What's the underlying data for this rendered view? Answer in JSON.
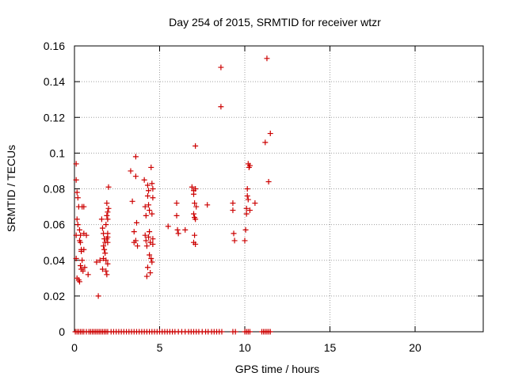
{
  "chart_data": {
    "type": "scatter",
    "title": "Day 254 of 2015, SRMTID for receiver wtzr",
    "xlabel": "GPS time / hours",
    "ylabel": "SRMTID / TECUs",
    "xlim": [
      0,
      24
    ],
    "ylim": [
      0,
      0.16
    ],
    "xticks": [
      0,
      5,
      10,
      15,
      20
    ],
    "xtick_labels": [
      "0",
      "5",
      "10",
      "15",
      "20"
    ],
    "yticks": [
      0,
      0.02,
      0.04,
      0.06,
      0.08,
      0.1,
      0.12,
      0.14,
      0.16
    ],
    "ytick_labels": [
      "0",
      "0.02",
      "0.04",
      "0.06",
      "0.08",
      "0.1",
      "0.12",
      "0.14",
      "0.16"
    ],
    "grid": true,
    "marker": "+",
    "marker_color": "#cc0000",
    "points": [
      [
        0.1,
        0.094
      ],
      [
        0.1,
        0.085
      ],
      [
        0.15,
        0.078
      ],
      [
        0.2,
        0.075
      ],
      [
        0.25,
        0.07
      ],
      [
        0.15,
        0.063
      ],
      [
        0.2,
        0.06
      ],
      [
        0.1,
        0.054
      ],
      [
        0.1,
        0.041
      ],
      [
        0.15,
        0.03
      ],
      [
        0.25,
        0.029
      ],
      [
        0.3,
        0.028
      ],
      [
        0.3,
        0.057
      ],
      [
        0.35,
        0.054
      ],
      [
        0.3,
        0.051
      ],
      [
        0.35,
        0.05
      ],
      [
        0.4,
        0.046
      ],
      [
        0.4,
        0.045
      ],
      [
        0.45,
        0.04
      ],
      [
        0.35,
        0.037
      ],
      [
        0.4,
        0.035
      ],
      [
        0.5,
        0.034
      ],
      [
        0.45,
        0.07
      ],
      [
        0.55,
        0.07
      ],
      [
        0.55,
        0.055
      ],
      [
        0.6,
        0.036
      ],
      [
        0.7,
        0.054
      ],
      [
        0.8,
        0.032
      ],
      [
        0.55,
        0.046
      ],
      [
        1.3,
        0.039
      ],
      [
        1.4,
        0.02
      ],
      [
        1.5,
        0.04
      ],
      [
        1.6,
        0.063
      ],
      [
        1.65,
        0.058
      ],
      [
        1.7,
        0.055
      ],
      [
        1.75,
        0.052
      ],
      [
        1.8,
        0.05
      ],
      [
        1.7,
        0.048
      ],
      [
        1.75,
        0.046
      ],
      [
        1.8,
        0.044
      ],
      [
        1.7,
        0.041
      ],
      [
        1.65,
        0.035
      ],
      [
        1.85,
        0.034
      ],
      [
        1.9,
        0.072
      ],
      [
        1.95,
        0.067
      ],
      [
        1.9,
        0.065
      ],
      [
        1.95,
        0.063
      ],
      [
        1.85,
        0.06
      ],
      [
        1.95,
        0.055
      ],
      [
        1.9,
        0.052
      ],
      [
        1.95,
        0.05
      ],
      [
        1.85,
        0.04
      ],
      [
        1.95,
        0.038
      ],
      [
        1.9,
        0.032
      ],
      [
        2.0,
        0.081
      ],
      [
        2.0,
        0.069
      ],
      [
        1.95,
        0.053
      ],
      [
        3.3,
        0.09
      ],
      [
        3.4,
        0.073
      ],
      [
        3.5,
        0.056
      ],
      [
        3.5,
        0.05
      ],
      [
        3.6,
        0.098
      ],
      [
        3.6,
        0.087
      ],
      [
        3.65,
        0.061
      ],
      [
        3.6,
        0.051
      ],
      [
        3.7,
        0.048
      ],
      [
        4.1,
        0.085
      ],
      [
        4.15,
        0.07
      ],
      [
        4.2,
        0.065
      ],
      [
        4.15,
        0.054
      ],
      [
        4.2,
        0.051
      ],
      [
        4.25,
        0.048
      ],
      [
        4.3,
        0.036
      ],
      [
        4.25,
        0.031
      ],
      [
        4.3,
        0.082
      ],
      [
        4.35,
        0.079
      ],
      [
        4.3,
        0.076
      ],
      [
        4.35,
        0.071
      ],
      [
        4.4,
        0.068
      ],
      [
        4.4,
        0.056
      ],
      [
        4.35,
        0.053
      ],
      [
        4.45,
        0.05
      ],
      [
        4.4,
        0.043
      ],
      [
        4.5,
        0.041
      ],
      [
        4.55,
        0.039
      ],
      [
        4.45,
        0.033
      ],
      [
        4.5,
        0.092
      ],
      [
        4.55,
        0.083
      ],
      [
        4.6,
        0.075
      ],
      [
        4.55,
        0.066
      ],
      [
        4.6,
        0.052
      ],
      [
        4.6,
        0.049
      ],
      [
        4.6,
        0.08
      ],
      [
        5.5,
        0.059
      ],
      [
        6.0,
        0.072
      ],
      [
        6.0,
        0.065
      ],
      [
        6.05,
        0.057
      ],
      [
        6.1,
        0.055
      ],
      [
        6.5,
        0.057
      ],
      [
        6.9,
        0.081
      ],
      [
        7.0,
        0.079
      ],
      [
        7.0,
        0.077
      ],
      [
        7.05,
        0.072
      ],
      [
        7.0,
        0.066
      ],
      [
        7.05,
        0.064
      ],
      [
        7.1,
        0.063
      ],
      [
        7.05,
        0.054
      ],
      [
        7.1,
        0.049
      ],
      [
        7.0,
        0.05
      ],
      [
        7.1,
        0.104
      ],
      [
        7.1,
        0.08
      ],
      [
        7.15,
        0.07
      ],
      [
        7.8,
        0.071
      ],
      [
        8.6,
        0.148
      ],
      [
        8.6,
        0.126
      ],
      [
        9.3,
        0.072
      ],
      [
        9.3,
        0.068
      ],
      [
        9.35,
        0.055
      ],
      [
        9.4,
        0.051
      ],
      [
        10.0,
        0.051
      ],
      [
        10.05,
        0.057
      ],
      [
        10.1,
        0.069
      ],
      [
        10.1,
        0.066
      ],
      [
        10.15,
        0.08
      ],
      [
        10.15,
        0.076
      ],
      [
        10.2,
        0.074
      ],
      [
        10.2,
        0.094
      ],
      [
        10.25,
        0.092
      ],
      [
        10.3,
        0.093
      ],
      [
        10.3,
        0.068
      ],
      [
        10.6,
        0.072
      ],
      [
        11.2,
        0.106
      ],
      [
        11.3,
        0.153
      ],
      [
        11.4,
        0.084
      ],
      [
        11.5,
        0.111
      ]
    ],
    "zero_x": [
      0.05,
      0.15,
      0.25,
      0.35,
      0.45,
      0.55,
      0.7,
      0.85,
      0.95,
      1.05,
      1.15,
      1.25,
      1.35,
      1.45,
      1.55,
      1.65,
      1.75,
      1.85,
      1.95,
      2.15,
      2.3,
      2.45,
      2.6,
      2.75,
      2.9,
      3.05,
      3.2,
      3.35,
      3.5,
      3.65,
      3.8,
      3.95,
      4.1,
      4.25,
      4.4,
      4.55,
      4.7,
      4.85,
      5.0,
      5.15,
      5.3,
      5.45,
      5.6,
      5.75,
      5.9,
      6.1,
      6.3,
      6.5,
      6.7,
      6.85,
      7.0,
      7.15,
      7.3,
      7.5,
      7.7,
      7.85,
      8.05,
      8.2,
      8.35,
      8.5,
      8.65,
      9.3,
      9.45,
      10.0,
      10.1,
      10.2,
      10.3,
      11.0,
      11.1,
      11.2,
      11.3,
      11.4,
      11.5
    ]
  }
}
